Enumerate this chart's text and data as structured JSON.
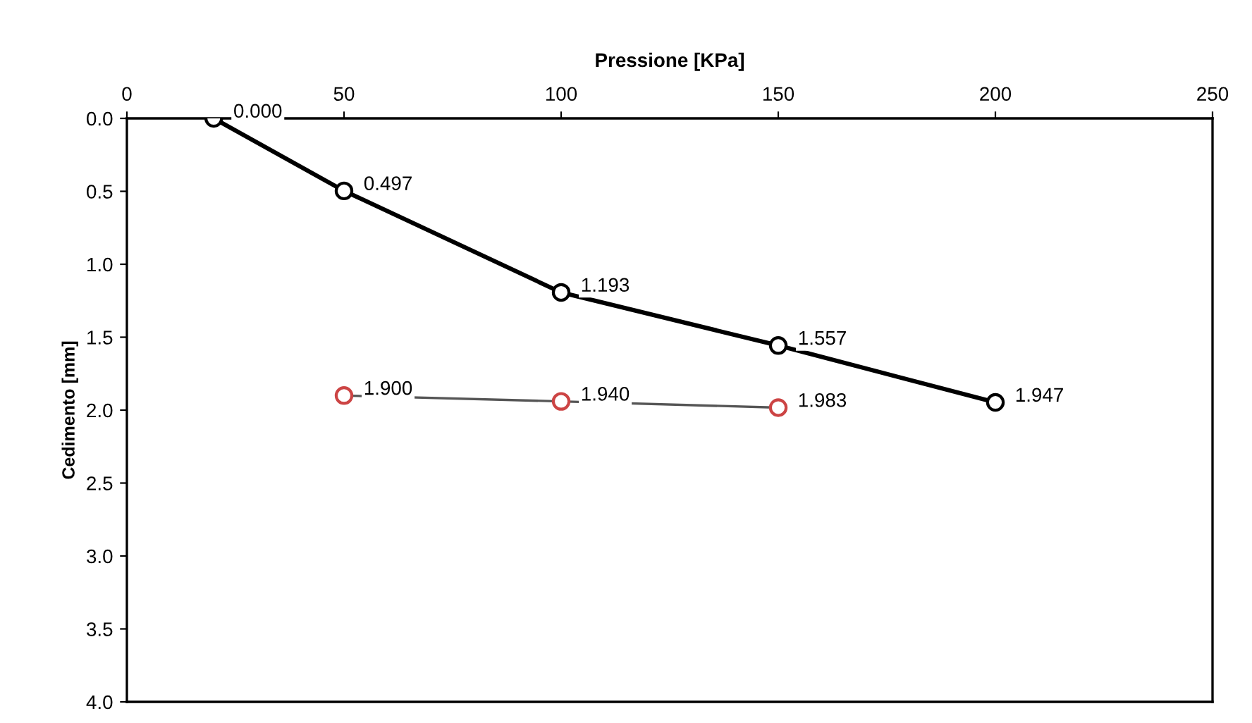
{
  "chart_data": {
    "type": "line",
    "xlabel": "Pressione [KPa]",
    "ylabel": "Cedimento [mm]",
    "xlim": [
      0,
      250
    ],
    "xticks": [
      0,
      50,
      100,
      150,
      200,
      250
    ],
    "ylim": [
      4,
      0
    ],
    "yticks": [
      {
        "value": 0,
        "label": "0.0"
      },
      {
        "value": 0.5,
        "label": "0.5"
      },
      {
        "value": 1,
        "label": "1.0"
      },
      {
        "value": 1.5,
        "label": "1.5"
      },
      {
        "value": 2,
        "label": "2.0"
      },
      {
        "value": 2.5,
        "label": "2.5"
      },
      {
        "value": 3,
        "label": "3.0"
      },
      {
        "value": 3.5,
        "label": "3.5"
      },
      {
        "value": 4,
        "label": "4.0"
      }
    ],
    "grid": false,
    "marker": "circle",
    "series": [
      {
        "color": "#000000",
        "x": [
          20,
          50,
          100,
          150,
          200
        ],
        "values": [
          0.0,
          0.497,
          1.193,
          1.557,
          1.947
        ],
        "value_labels": [
          "0.000",
          "0.497",
          "1.193",
          "1.557",
          "1.947"
        ]
      },
      {
        "color": "#cc4444",
        "x": [
          50,
          100,
          150
        ],
        "values": [
          1.9,
          1.94,
          1.983
        ],
        "value_labels": [
          "1.900",
          "1.940",
          "1.983"
        ]
      }
    ]
  }
}
